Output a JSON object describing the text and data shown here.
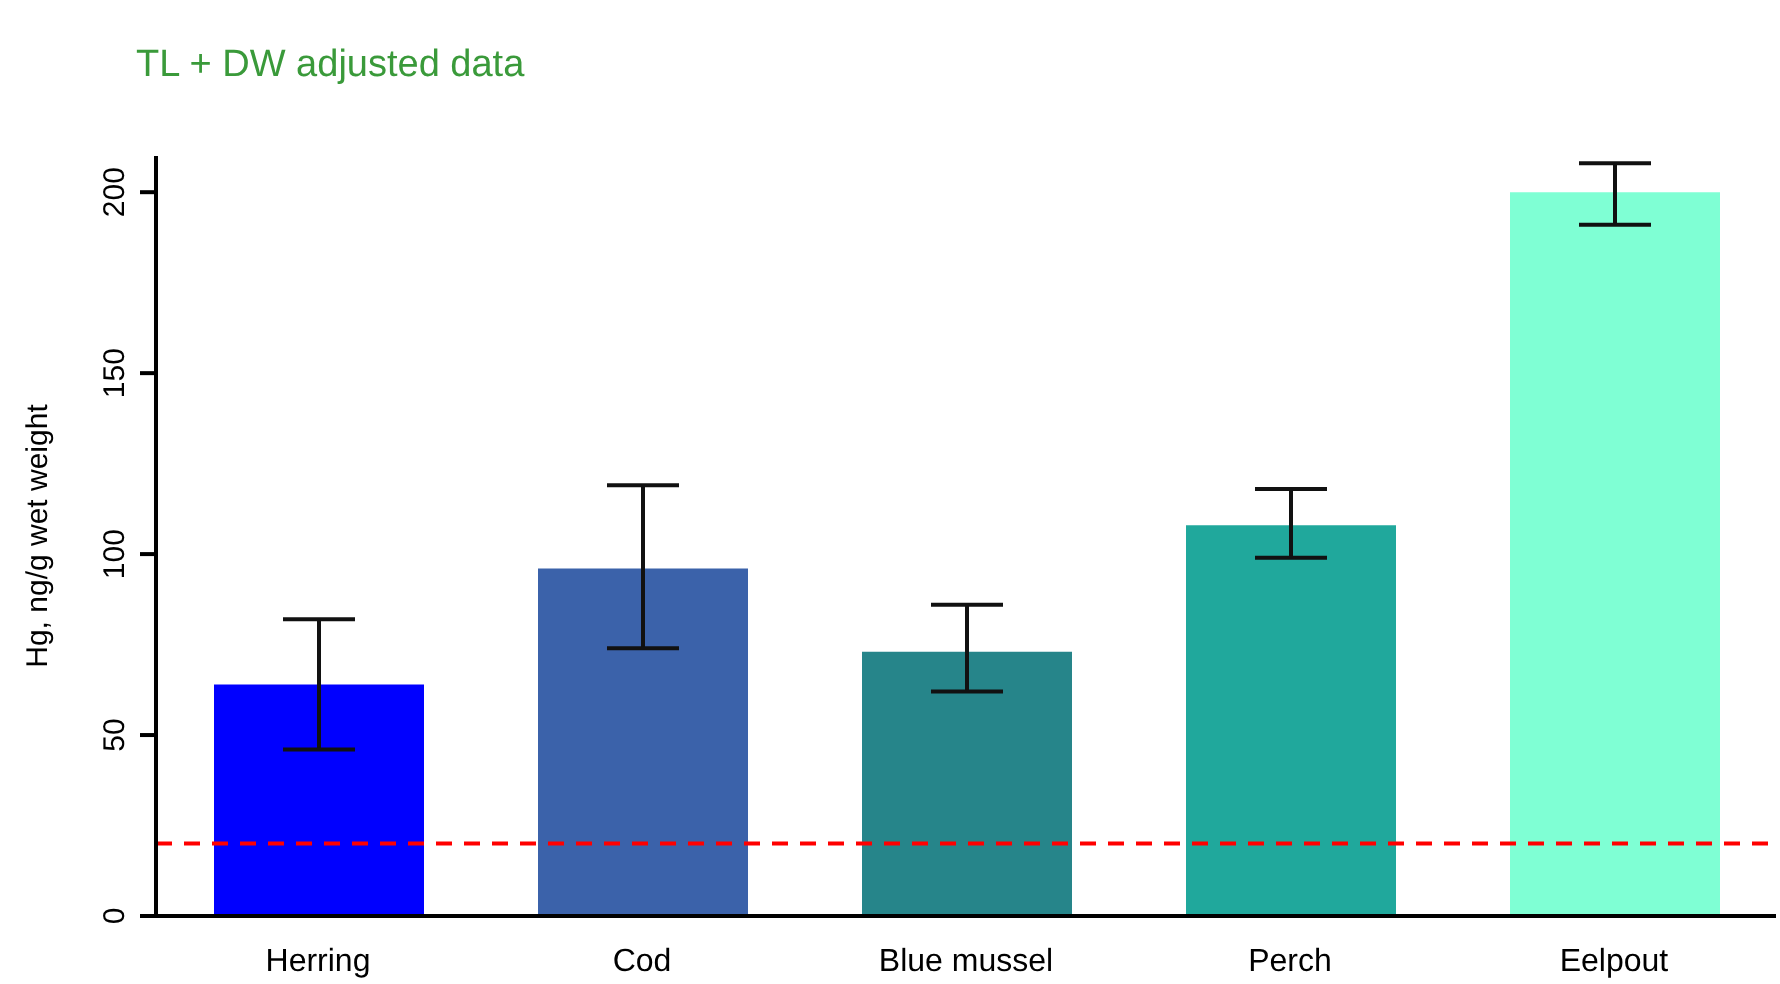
{
  "chart_data": {
    "type": "bar",
    "title": "TL + DW adjusted data",
    "ylabel": "Hg, ng/g wet weight",
    "categories": [
      "Herring",
      "Cod",
      "Blue mussel",
      "Perch",
      "Eelpout"
    ],
    "values": [
      64,
      96,
      73,
      108,
      200
    ],
    "colors": [
      "#0000ff",
      "#3b62aa",
      "#26858a",
      "#20a89c",
      "#7fffd4"
    ],
    "errors": [
      [
        46,
        82
      ],
      [
        74,
        119
      ],
      [
        62,
        86
      ],
      [
        99,
        118
      ],
      [
        191,
        208
      ]
    ],
    "ylim": [
      0,
      210
    ],
    "yticks": [
      0,
      50,
      100,
      150,
      200
    ],
    "grid": false,
    "legend": false,
    "ref_lines": [
      {
        "axis": "y",
        "value": 20,
        "color": "#ff0000",
        "line_style": "dashed"
      }
    ]
  }
}
